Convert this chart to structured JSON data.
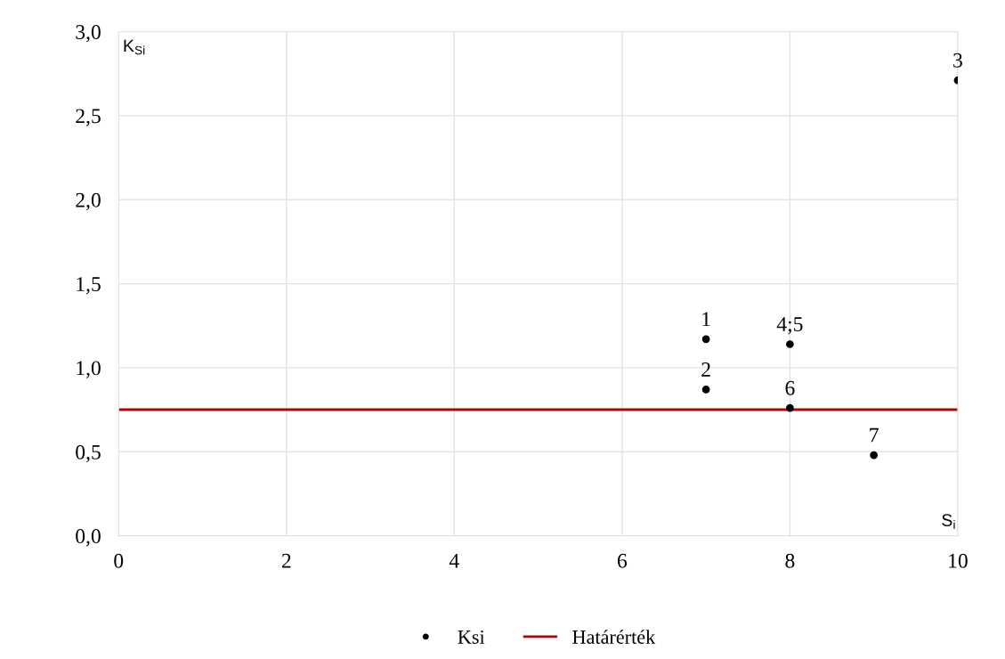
{
  "chart_data": {
    "type": "scatter",
    "xlabel": "S$_{i}$",
    "ylabel": "K$_{Si}$",
    "xlim": [
      0,
      10
    ],
    "xticks": [
      0,
      2,
      4,
      6,
      8,
      10
    ],
    "ylim": [
      0,
      3
    ],
    "yticks": [
      {
        "value": 0,
        "label": "0,0"
      },
      {
        "value": 0.5,
        "label": "0,5"
      },
      {
        "value": 1,
        "label": "1,0"
      },
      {
        "value": 1.5,
        "label": "1,5"
      },
      {
        "value": 2,
        "label": "2,0"
      },
      {
        "value": 2.5,
        "label": "2,5"
      },
      {
        "value": 3,
        "label": "3,0"
      }
    ],
    "grid": true,
    "legend": "bottom",
    "marker": "circle",
    "series": [
      {
        "name": "Ksi",
        "color": "#000000",
        "x": [
          7,
          7,
          10,
          8,
          8,
          9
        ],
        "values": [
          1.17,
          0.87,
          2.71,
          1.14,
          0.76,
          0.48
        ]
      },
      {
        "name": "Határérték",
        "type": "line",
        "color": "#c00000",
        "x": [
          0,
          10
        ],
        "values": [
          0.75,
          0.75
        ],
        "marker": "none"
      }
    ],
    "annotations": [
      {
        "text": "1",
        "x": 7,
        "y": 1.17
      },
      {
        "text": "2",
        "x": 7,
        "y": 0.87
      },
      {
        "text": "3",
        "x": 10,
        "y": 2.71
      },
      {
        "text": "4;5",
        "x": 8,
        "y": 1.14
      },
      {
        "text": "6",
        "x": 8,
        "y": 0.76
      },
      {
        "text": "7",
        "x": 9,
        "y": 0.48
      }
    ]
  }
}
